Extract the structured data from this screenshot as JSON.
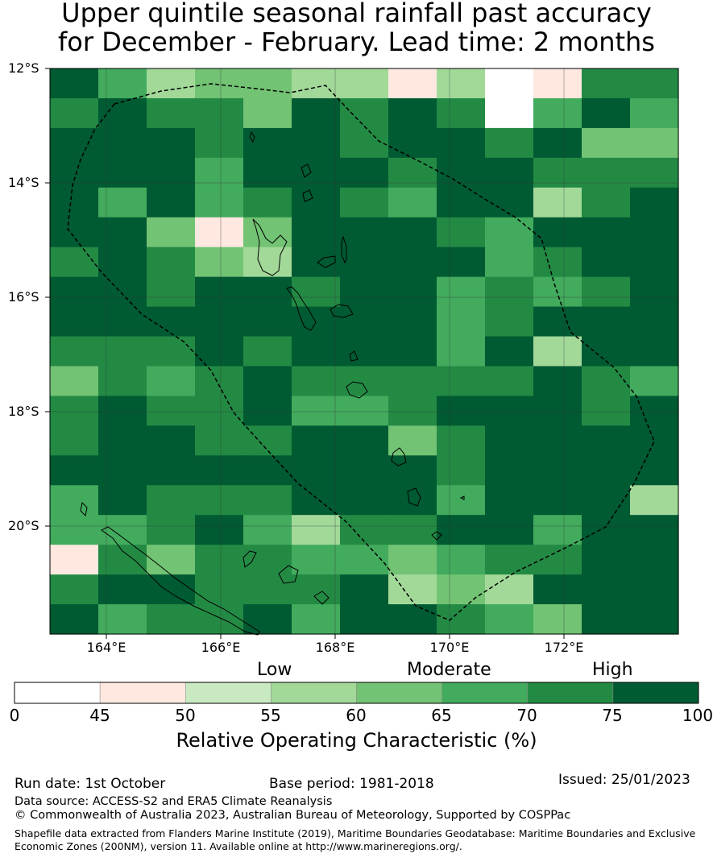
{
  "title": {
    "line1": "Upper quintile seasonal rainfall past accuracy",
    "line2": "for December - February. Lead time: 2 months"
  },
  "map": {
    "lat_labels": [
      "12°S",
      "14°S",
      "16°S",
      "18°S",
      "20°S"
    ],
    "lon_labels": [
      "164°E",
      "166°E",
      "168°E",
      "170°E",
      "172°E"
    ],
    "grid": [
      [
        75,
        65,
        55,
        60,
        60,
        55,
        55,
        45,
        55,
        0,
        45,
        70,
        70
      ],
      [
        70,
        75,
        70,
        70,
        60,
        75,
        70,
        75,
        70,
        0,
        65,
        75,
        65
      ],
      [
        75,
        75,
        75,
        70,
        75,
        75,
        70,
        75,
        75,
        70,
        75,
        60,
        60
      ],
      [
        75,
        75,
        75,
        65,
        75,
        75,
        75,
        70,
        75,
        75,
        70,
        70,
        70
      ],
      [
        75,
        65,
        75,
        65,
        70,
        75,
        70,
        65,
        75,
        75,
        55,
        70,
        75
      ],
      [
        75,
        75,
        60,
        45,
        60,
        75,
        75,
        75,
        70,
        65,
        75,
        75,
        75
      ],
      [
        70,
        75,
        70,
        60,
        55,
        75,
        75,
        75,
        75,
        65,
        70,
        75,
        75
      ],
      [
        75,
        75,
        70,
        75,
        75,
        70,
        75,
        75,
        65,
        70,
        65,
        70,
        75
      ],
      [
        75,
        75,
        75,
        75,
        75,
        75,
        75,
        75,
        65,
        70,
        75,
        75,
        75
      ],
      [
        70,
        70,
        70,
        75,
        70,
        75,
        75,
        75,
        65,
        75,
        55,
        75,
        75
      ],
      [
        60,
        70,
        65,
        70,
        75,
        70,
        70,
        70,
        70,
        70,
        75,
        70,
        65
      ],
      [
        70,
        75,
        70,
        70,
        75,
        65,
        65,
        70,
        75,
        75,
        75,
        70,
        75
      ],
      [
        70,
        75,
        75,
        70,
        70,
        75,
        75,
        60,
        70,
        75,
        75,
        75,
        75
      ],
      [
        75,
        75,
        75,
        75,
        75,
        75,
        75,
        75,
        70,
        75,
        75,
        75,
        75
      ],
      [
        65,
        75,
        70,
        70,
        70,
        75,
        75,
        75,
        65,
        75,
        75,
        75,
        55
      ],
      [
        65,
        65,
        70,
        75,
        65,
        55,
        70,
        70,
        75,
        75,
        65,
        75,
        75
      ],
      [
        45,
        70,
        60,
        70,
        70,
        65,
        65,
        60,
        65,
        70,
        70,
        75,
        75
      ],
      [
        70,
        75,
        75,
        70,
        70,
        70,
        75,
        55,
        60,
        55,
        75,
        75,
        75
      ],
      [
        75,
        65,
        70,
        70,
        75,
        65,
        75,
        75,
        70,
        65,
        60,
        75,
        75
      ]
    ]
  },
  "categories": {
    "low": "Low",
    "moderate": "Moderate",
    "high": "High"
  },
  "colorbar": {
    "ticks": [
      "0",
      "45",
      "50",
      "55",
      "60",
      "65",
      "70",
      "75",
      "100"
    ],
    "colors": [
      "#ffffff",
      "#fee8df",
      "#c8e9c2",
      "#a2d999",
      "#72c373",
      "#42ab5d",
      "#238a44",
      "#005a32"
    ],
    "label": "Relative Operating Characteristic (%)"
  },
  "footer": {
    "run_date": "Run date: 1st October",
    "base_period": "Base period: 1981-2018",
    "issued": "Issued: 25/01/2023",
    "data_source": "Data source: ACCESS-S2 and ERA5 Climate Reanalysis",
    "copyright": "© Commonwealth of Australia 2023, Australian Bureau of Meteorology, Supported by COSPPac",
    "shapefile_note": "Shapefile data extracted from Flanders Marine Institute (2019), Maritime Boundaries Geodatabase: Maritime Boundaries and Exclusive Economic Zones (200NM), version 11. Available online at http://www.marineregions.org/."
  }
}
